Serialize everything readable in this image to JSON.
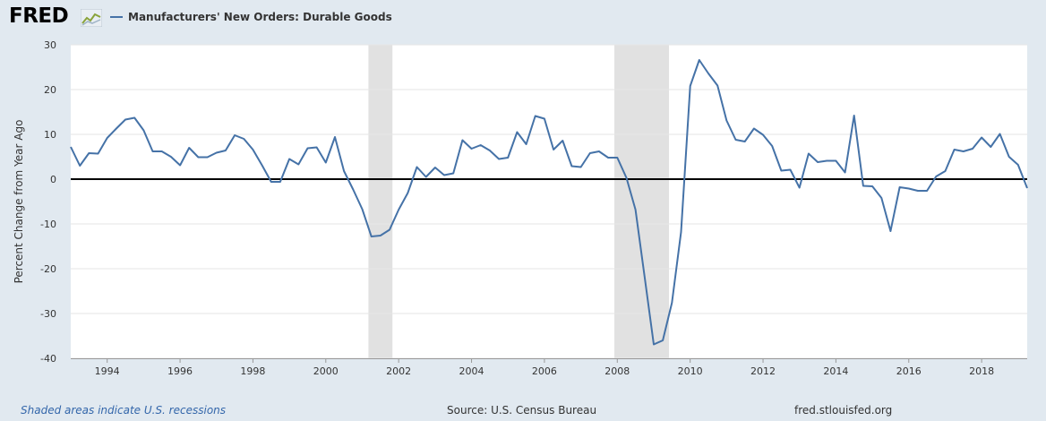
{
  "header": {
    "logo_text": "FRED",
    "logo_icon": "line-chart-icon",
    "legend_label": "Manufacturers' New Orders: Durable Goods",
    "series_color": "#4572a7"
  },
  "footer": {
    "recession_note": "Shaded areas indicate U.S. recessions",
    "source": "Source: U.S. Census Bureau",
    "site": "fred.stlouisfed.org"
  },
  "chart_data": {
    "type": "line",
    "title": "Manufacturers' New Orders: Durable Goods",
    "xlabel": "",
    "ylabel": "Percent Change from Year Ago",
    "xlim": [
      1993.0,
      2019.25
    ],
    "ylim": [
      -40,
      30
    ],
    "y_ticks": [
      30,
      20,
      10,
      0,
      -10,
      -20,
      -30,
      -40
    ],
    "x_ticks": [
      1994,
      1996,
      1998,
      2000,
      2002,
      2004,
      2006,
      2008,
      2010,
      2012,
      2014,
      2016,
      2018
    ],
    "grid": true,
    "recessions": [
      [
        2001.17,
        2001.83
      ],
      [
        2007.92,
        2009.42
      ]
    ],
    "series": [
      {
        "name": "Manufacturers' New Orders: Durable Goods",
        "color": "#4572a7",
        "start": 1993.0,
        "step": 0.25,
        "values": [
          7.2,
          3.0,
          5.8,
          5.7,
          9.2,
          11.3,
          13.3,
          13.7,
          10.9,
          6.2,
          6.2,
          5.0,
          3.1,
          7.0,
          4.9,
          4.9,
          5.9,
          6.4,
          9.8,
          9.0,
          6.6,
          3.1,
          -0.6,
          -0.6,
          4.5,
          3.3,
          6.9,
          7.1,
          3.7,
          9.4,
          1.8,
          -2.3,
          -6.7,
          -12.8,
          -12.6,
          -11.3,
          -6.8,
          -3.1,
          2.7,
          0.5,
          2.6,
          0.9,
          1.3,
          8.7,
          6.8,
          7.6,
          6.4,
          4.5,
          4.8,
          10.5,
          7.8,
          14.1,
          13.5,
          6.6,
          8.6,
          2.9,
          2.7,
          5.8,
          6.2,
          4.8,
          4.8,
          0.3,
          -6.8,
          -21.8,
          -36.9,
          -36.0,
          -27.6,
          -11.8,
          20.8,
          26.6,
          23.6,
          20.9,
          13.1,
          8.8,
          8.4,
          11.3,
          9.9,
          7.4,
          1.9,
          2.1,
          -1.9,
          5.7,
          3.8,
          4.1,
          4.1,
          1.5,
          14.2,
          -1.5,
          -1.6,
          -4.2,
          -11.6,
          -1.8,
          -2.1,
          -2.6,
          -2.6,
          0.6,
          1.8,
          6.6,
          6.2,
          6.8,
          9.3,
          7.2,
          10.1,
          5.0,
          3.2,
          -2.0
        ]
      }
    ]
  }
}
